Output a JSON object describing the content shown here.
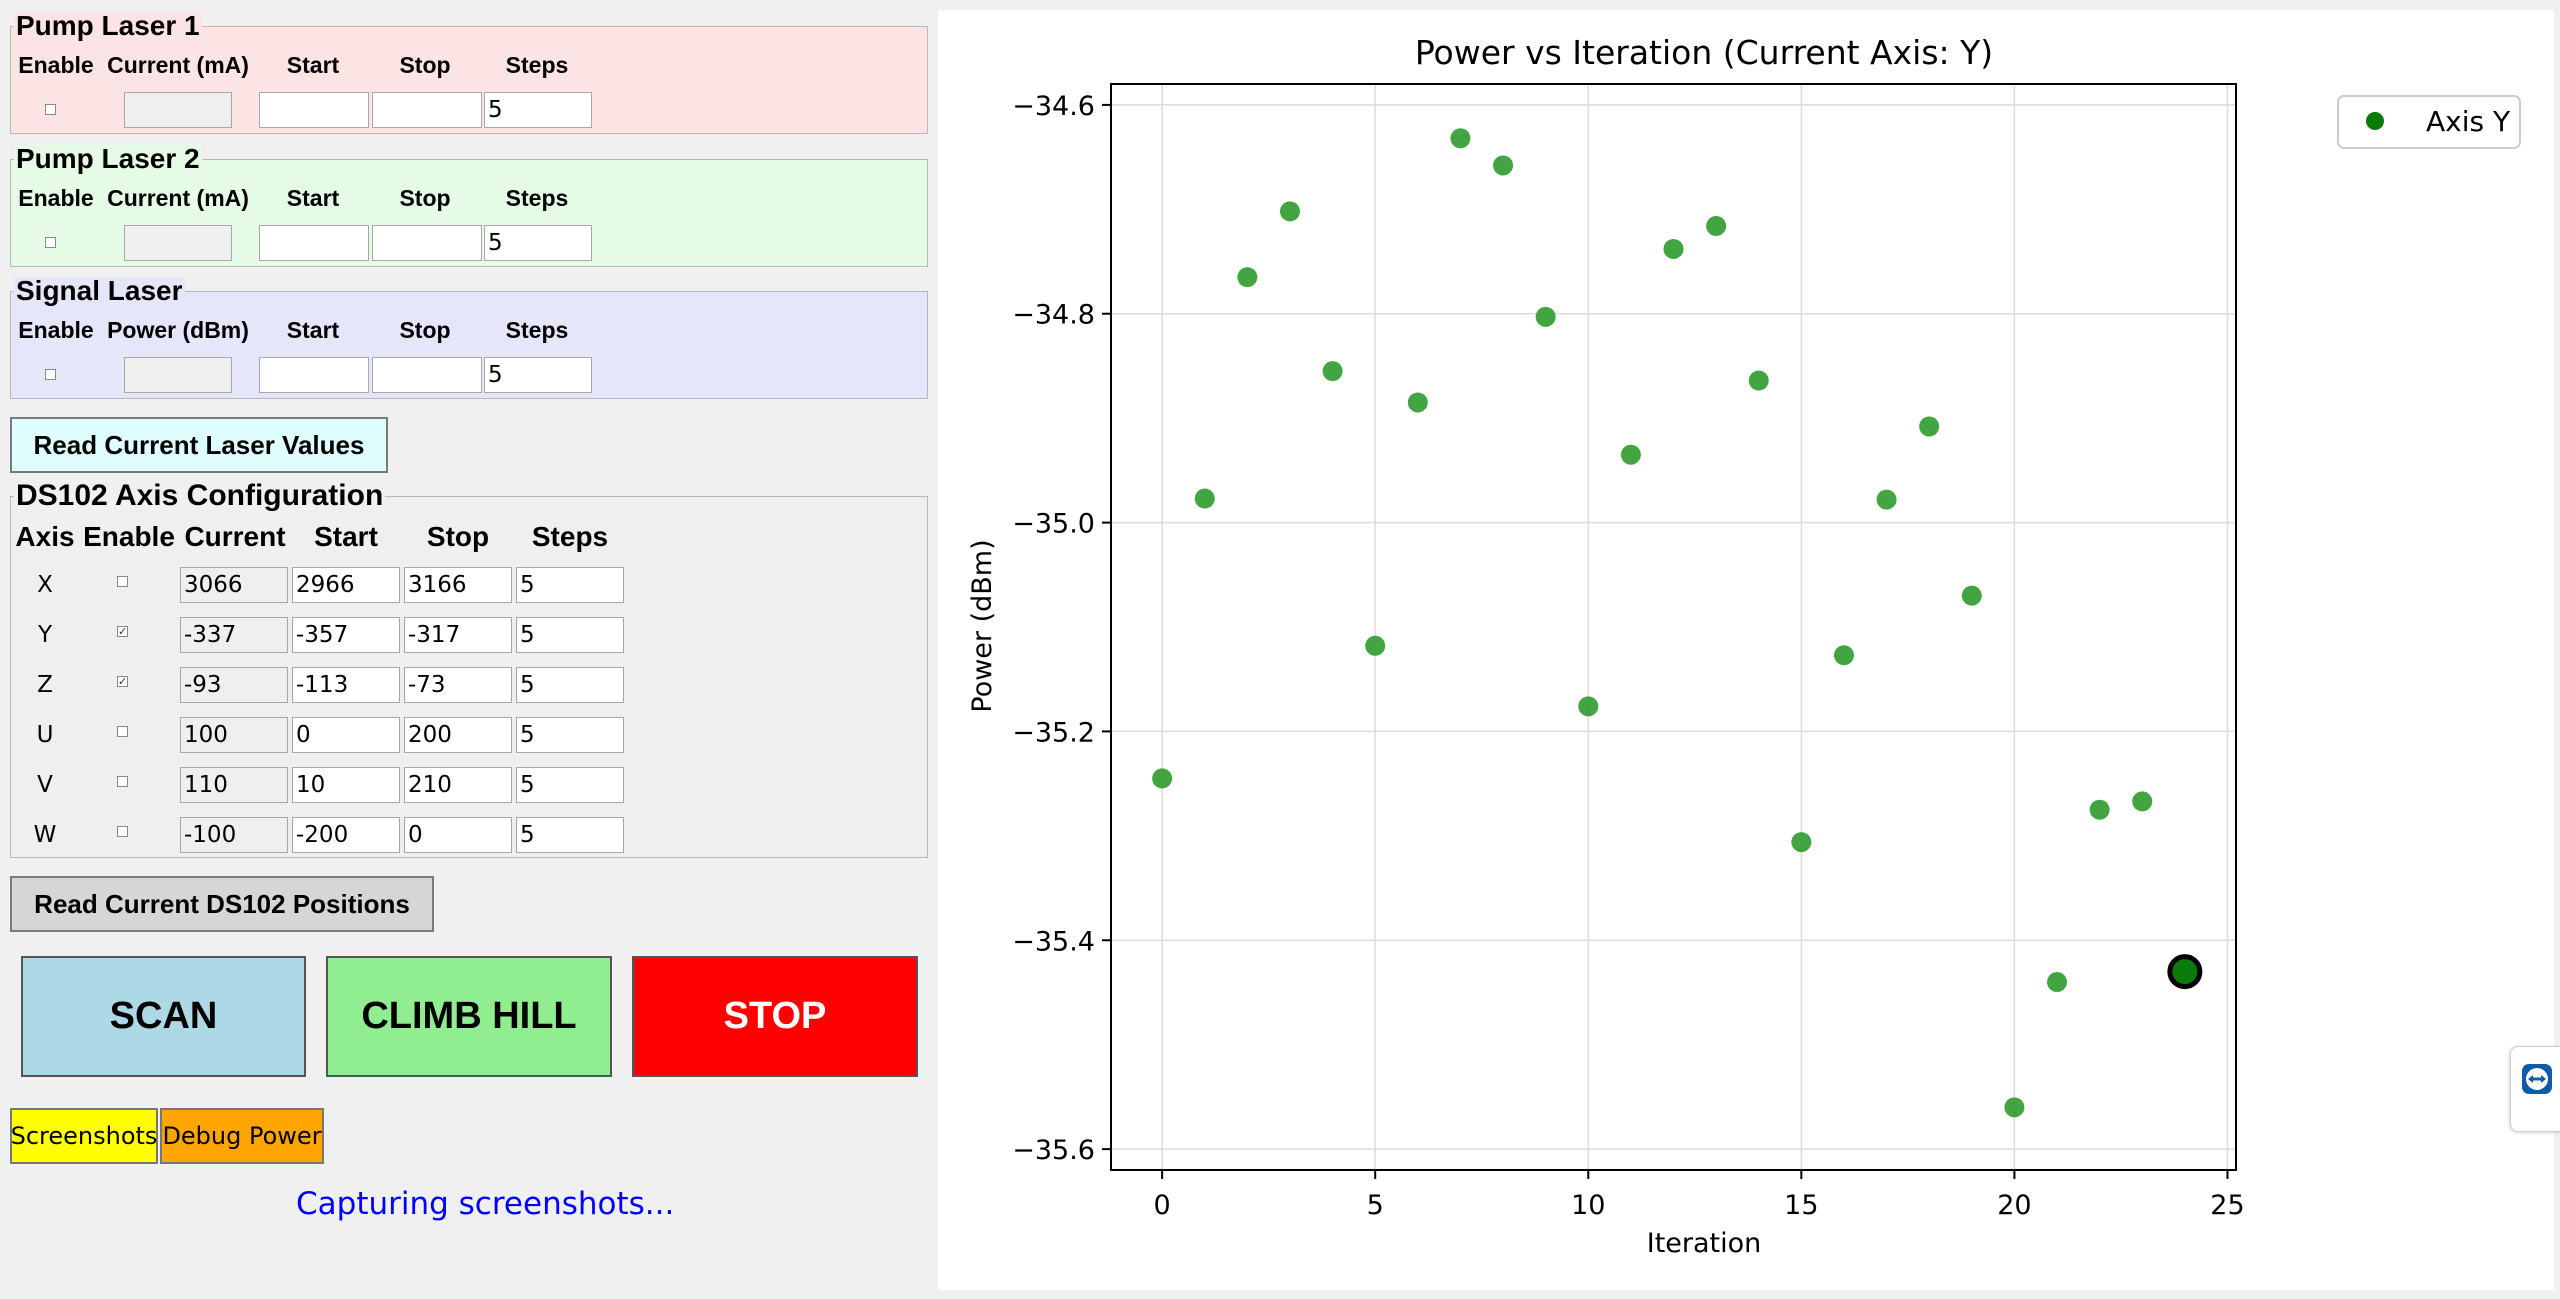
{
  "pump1": {
    "title": "Pump Laser 1",
    "headers": [
      "Enable",
      "Current (mA)",
      "Start",
      "Stop",
      "Steps"
    ],
    "enabled": false,
    "current": "",
    "start": "",
    "stop": "",
    "steps": "5"
  },
  "pump2": {
    "title": "Pump Laser 2",
    "headers": [
      "Enable",
      "Current (mA)",
      "Start",
      "Stop",
      "Steps"
    ],
    "enabled": false,
    "current": "",
    "start": "",
    "stop": "",
    "steps": "5"
  },
  "signal": {
    "title": "Signal Laser",
    "headers": [
      "Enable",
      "Power (dBm)",
      "Start",
      "Stop",
      "Steps"
    ],
    "enabled": false,
    "current": "",
    "start": "",
    "stop": "",
    "steps": "5"
  },
  "read_laser_label": "Read Current Laser Values",
  "ds102": {
    "title": "DS102 Axis Configuration",
    "headers": [
      "Axis",
      "Enable",
      "Current",
      "Start",
      "Stop",
      "Steps"
    ],
    "rows": [
      {
        "axis": "X",
        "enabled": false,
        "current": "3066",
        "start": "2966",
        "stop": "3166",
        "steps": "5"
      },
      {
        "axis": "Y",
        "enabled": true,
        "current": "-337",
        "start": "-357",
        "stop": "-317",
        "steps": "5"
      },
      {
        "axis": "Z",
        "enabled": true,
        "current": "-93",
        "start": "-113",
        "stop": "-73",
        "steps": "5"
      },
      {
        "axis": "U",
        "enabled": false,
        "current": "100",
        "start": "0",
        "stop": "200",
        "steps": "5"
      },
      {
        "axis": "V",
        "enabled": false,
        "current": "110",
        "start": "10",
        "stop": "210",
        "steps": "5"
      },
      {
        "axis": "W",
        "enabled": false,
        "current": "-100",
        "start": "-200",
        "stop": "0",
        "steps": "5"
      }
    ]
  },
  "read_ds102_label": "Read Current DS102 Positions",
  "actions": {
    "scan": "SCAN",
    "climb": "CLIMB HILL",
    "stop": "STOP"
  },
  "tools": {
    "screenshots": "Screenshots",
    "debug": "Debug Power"
  },
  "status_text": "Capturing screenshots...",
  "colors": {
    "pump1_bg": "#fde4e4",
    "pump2_bg": "#e6fbe6",
    "signal_bg": "#e6e6fb",
    "read_laser_bg": "#dffdfd",
    "scan_bg": "#add8e6",
    "climb_bg": "#90ee90",
    "stop_bg": "#ff0000",
    "screenshots_bg": "#ffff00",
    "debug_bg": "#ffa500",
    "status_color": "#0000ff",
    "point_color": "#2e9b2e",
    "current_point_color": "#0a7a0a"
  },
  "side_icon": "teamviewer-icon",
  "chart_data": {
    "type": "scatter",
    "title": "Power vs Iteration (Current Axis: Y)",
    "xlabel": "Iteration",
    "ylabel": "Power (dBm)",
    "xlim": [
      -1.2,
      25.2
    ],
    "ylim": [
      -35.62,
      -34.58
    ],
    "xticks": [
      0,
      5,
      10,
      15,
      20,
      25
    ],
    "yticks": [
      -34.6,
      -34.8,
      -35.0,
      -35.2,
      -35.4,
      -35.6
    ],
    "ytick_labels": [
      "−34.6",
      "−34.8",
      "−35.0",
      "−35.2",
      "−35.4",
      "−35.6"
    ],
    "grid": true,
    "legend": "right, outside plot",
    "series": [
      {
        "name": "Axis Y",
        "x": [
          0,
          1,
          2,
          3,
          4,
          5,
          6,
          7,
          8,
          9,
          10,
          11,
          12,
          13,
          14,
          15,
          16,
          17,
          18,
          19,
          20,
          21,
          22,
          23,
          24
        ],
        "y": [
          -35.245,
          -34.977,
          -34.765,
          -34.702,
          -34.855,
          -35.118,
          -34.885,
          -34.632,
          -34.658,
          -34.803,
          -35.176,
          -34.935,
          -34.738,
          -34.716,
          -34.864,
          -35.306,
          -35.127,
          -34.978,
          -34.908,
          -35.07,
          -35.56,
          -35.44,
          -35.275,
          -35.267,
          -35.43
        ]
      }
    ],
    "highlight_index": 24
  }
}
